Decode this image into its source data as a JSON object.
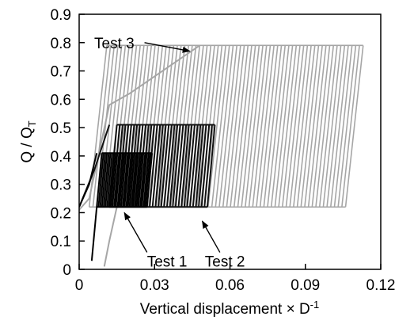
{
  "chart_data": {
    "type": "line",
    "title": "",
    "xlabel_text": "Vertical displacement × D",
    "xlabel_sup": "-1",
    "ylabel_main": "Q / Q",
    "ylabel_sub": "T",
    "xlim": [
      0,
      0.12
    ],
    "ylim": [
      0,
      0.9
    ],
    "x_ticks": [
      "0",
      "0.03",
      "0.06",
      "0.09",
      "0.12"
    ],
    "y_ticks": [
      "0",
      "0.1",
      "0.2",
      "0.3",
      "0.4",
      "0.5",
      "0.6",
      "0.7",
      "0.8",
      "0.9"
    ],
    "grid": false,
    "legend": "none",
    "series": [
      {
        "name": "Test 3",
        "color": "#a6a6a6",
        "cycles": {
          "x_start": 0.004,
          "x_end": 0.106,
          "count": 70,
          "ymin": 0.22,
          "ymax": 0.79,
          "loop_width": 0.007
        },
        "initial_loading": [
          [
            0.0,
            0.21
          ],
          [
            0.004,
            0.25
          ],
          [
            0.012,
            0.58
          ],
          [
            0.02,
            0.62
          ],
          [
            0.048,
            0.79
          ]
        ],
        "initial_unloading": [
          [
            0.01,
            0.01
          ],
          [
            0.012,
            0.1
          ],
          [
            0.015,
            0.22
          ]
        ]
      },
      {
        "name": "Test 2",
        "color": "#111111",
        "cycles": {
          "x_start": 0.012,
          "x_end": 0.051,
          "count": 35,
          "ymin": 0.22,
          "ymax": 0.51,
          "loop_width": 0.003
        },
        "initial_loading": [
          [
            0.0,
            0.22
          ],
          [
            0.006,
            0.35
          ],
          [
            0.012,
            0.51
          ]
        ],
        "initial_unloading": []
      },
      {
        "name": "Test 1",
        "color": "#000000",
        "cycles": {
          "x_start": 0.007,
          "x_end": 0.027,
          "count": 30,
          "ymin": 0.22,
          "ymax": 0.41,
          "loop_width": 0.002
        },
        "initial_loading": [
          [
            0.0,
            0.22
          ],
          [
            0.004,
            0.3
          ],
          [
            0.007,
            0.41
          ]
        ],
        "initial_unloading": [
          [
            0.005,
            0.03
          ],
          [
            0.007,
            0.22
          ]
        ]
      }
    ],
    "annotations": [
      {
        "label": "Test 3",
        "text_at": [
          0.006,
          0.8
        ],
        "arrow_from": [
          0.026,
          0.8
        ],
        "arrow_to": [
          0.044,
          0.77
        ]
      },
      {
        "label": "Test 1",
        "text_at": [
          0.027,
          0.03
        ],
        "arrow_from": [
          0.027,
          0.06
        ],
        "arrow_to": [
          0.018,
          0.2
        ]
      },
      {
        "label": "Test 2",
        "text_at": [
          0.05,
          0.03
        ],
        "arrow_from": [
          0.056,
          0.06
        ],
        "arrow_to": [
          0.049,
          0.17
        ]
      }
    ]
  }
}
